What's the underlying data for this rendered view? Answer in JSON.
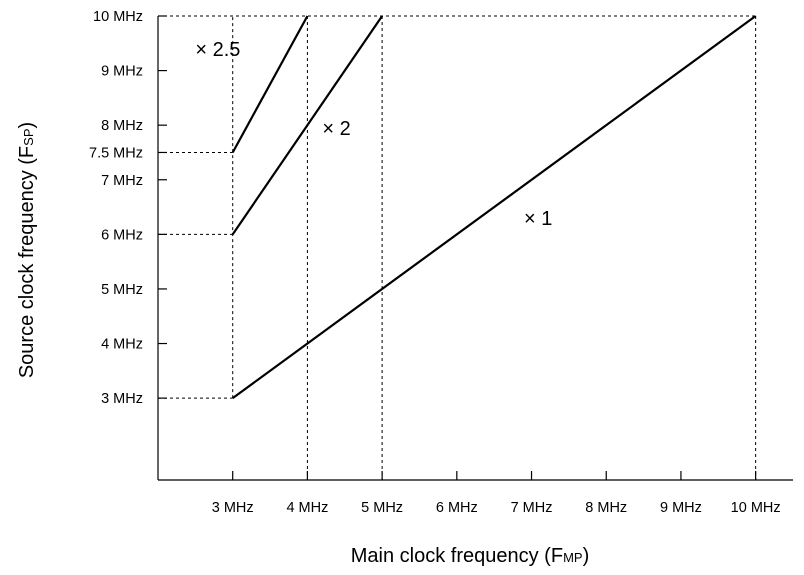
{
  "chart_data": {
    "type": "line",
    "title": "",
    "xlabel": {
      "main": "Main clock frequency (F",
      "sub": "MP",
      "end": ")"
    },
    "ylabel": {
      "main": "Source clock frequency (F",
      "sub": "SP",
      "end": ")"
    },
    "xlim": [
      2,
      10.5
    ],
    "ylim": [
      1.5,
      10
    ],
    "x_ticks": [
      {
        "value": 3,
        "label": "3 MHz"
      },
      {
        "value": 4,
        "label": "4 MHz"
      },
      {
        "value": 5,
        "label": "5 MHz"
      },
      {
        "value": 6,
        "label": "6 MHz"
      },
      {
        "value": 7,
        "label": "7 MHz"
      },
      {
        "value": 8,
        "label": "8 MHz"
      },
      {
        "value": 9,
        "label": "9 MHz"
      },
      {
        "value": 10,
        "label": "10 MHz"
      }
    ],
    "y_ticks": [
      {
        "value": 3,
        "label": "3 MHz"
      },
      {
        "value": 4,
        "label": "4 MHz"
      },
      {
        "value": 5,
        "label": "5 MHz"
      },
      {
        "value": 6,
        "label": "6 MHz"
      },
      {
        "value": 7,
        "label": "7 MHz"
      },
      {
        "value": 7.5,
        "label": "7.5 MHz"
      },
      {
        "value": 8,
        "label": "8 MHz"
      },
      {
        "value": 9,
        "label": "9 MHz"
      },
      {
        "value": 10,
        "label": "10 MHz"
      }
    ],
    "series": [
      {
        "name": "× 1",
        "points": [
          [
            3,
            3
          ],
          [
            10,
            10
          ]
        ],
        "label_at": [
          6.9,
          6.3
        ]
      },
      {
        "name": "× 2",
        "points": [
          [
            3,
            6
          ],
          [
            5,
            10
          ]
        ],
        "label_at": [
          4.2,
          7.95
        ]
      },
      {
        "name": "× 2.5",
        "points": [
          [
            3,
            7.5
          ],
          [
            4,
            10
          ]
        ],
        "label_at": [
          2.5,
          9.4
        ]
      }
    ],
    "guides": [
      {
        "points": [
          [
            3,
            3
          ],
          [
            3,
            10
          ]
        ]
      },
      {
        "points": [
          [
            4,
            10
          ],
          [
            4,
            1.5
          ]
        ]
      },
      {
        "points": [
          [
            5,
            10
          ],
          [
            5,
            1.5
          ]
        ]
      },
      {
        "points": [
          [
            10,
            10
          ],
          [
            10,
            1.5
          ]
        ]
      },
      {
        "points": [
          [
            2,
            10
          ],
          [
            10,
            10
          ]
        ]
      },
      {
        "points": [
          [
            2,
            7.5
          ],
          [
            3,
            7.5
          ]
        ]
      },
      {
        "points": [
          [
            2,
            6
          ],
          [
            3,
            6
          ]
        ]
      },
      {
        "points": [
          [
            2,
            3
          ],
          [
            3,
            3
          ]
        ]
      }
    ],
    "grid": false,
    "legend": "none"
  }
}
